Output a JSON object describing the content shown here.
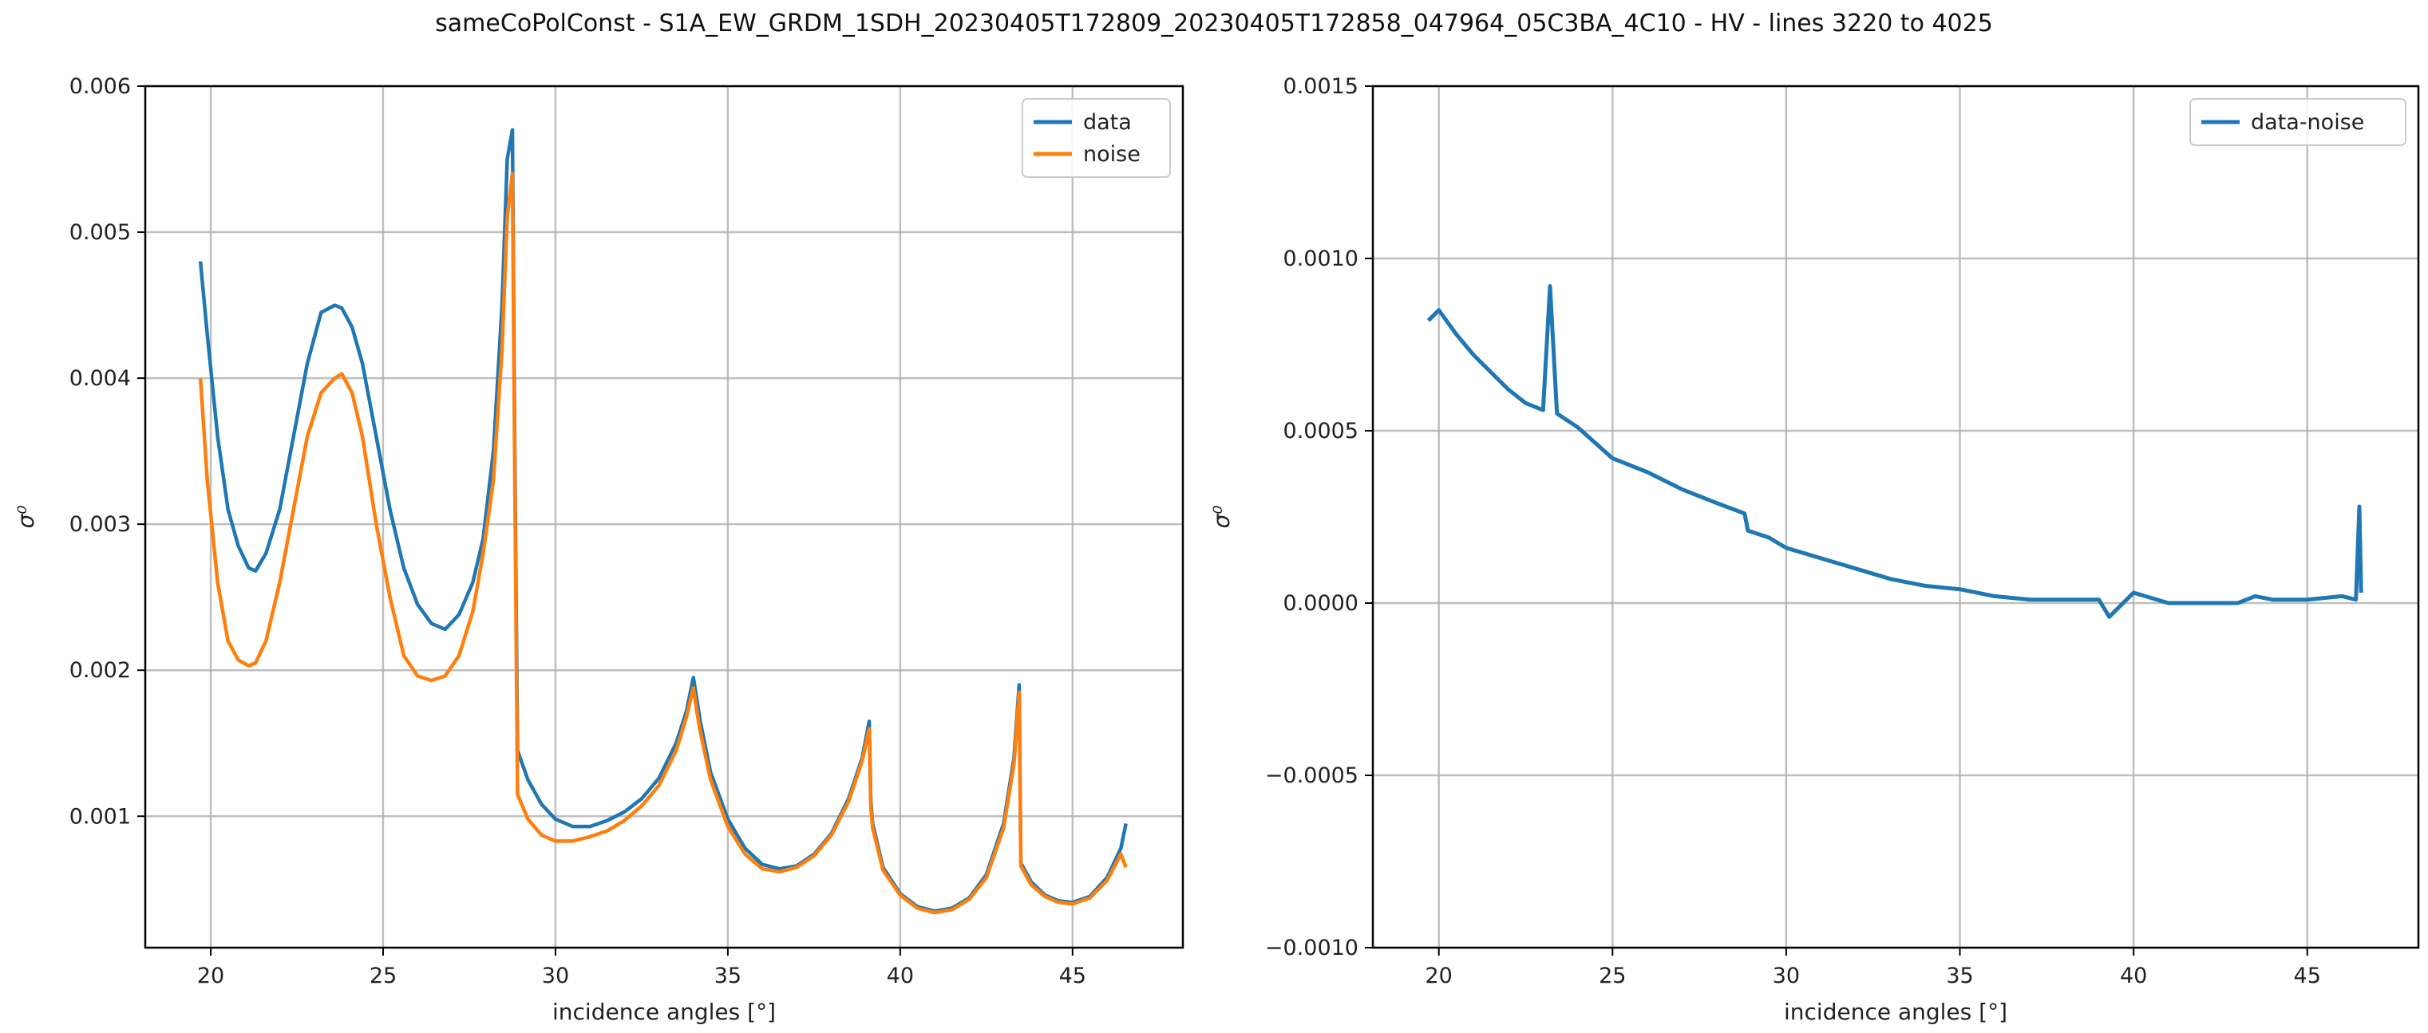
{
  "figure": {
    "suptitle": "sameCoPolConst - S1A_EW_GRDM_1SDH_20230405T172809_20230405T172858_047964_05C3BA_4C10 - HV - lines 3220 to 4025"
  },
  "colors": {
    "data": "#1f77b4",
    "noise": "#ff7f0e",
    "grid": "#b0b0b0",
    "axes": "#000000"
  },
  "chart_data": [
    {
      "type": "line",
      "title": "",
      "xlabel": "incidence angles [°]",
      "ylabel": "σ⁰",
      "xlim": [
        18.1,
        48.2
      ],
      "ylim": [
        0.0001,
        0.006
      ],
      "xticks": [
        20,
        25,
        30,
        35,
        40,
        45
      ],
      "xtick_labels": [
        "20",
        "25",
        "30",
        "35",
        "40",
        "45"
      ],
      "yticks": [
        0.001,
        0.002,
        0.003,
        0.004,
        0.005,
        0.006
      ],
      "ytick_labels": [
        "0.001",
        "0.002",
        "0.003",
        "0.004",
        "0.005",
        "0.006"
      ],
      "grid": true,
      "legend_position": "top-right",
      "series": [
        {
          "name": "data",
          "color": "#1f77b4",
          "x": [
            19.7,
            19.9,
            20.2,
            20.5,
            20.8,
            21.1,
            21.3,
            21.6,
            22.0,
            22.4,
            22.8,
            23.2,
            23.6,
            23.8,
            24.1,
            24.4,
            24.8,
            25.2,
            25.6,
            26.0,
            26.4,
            26.8,
            27.2,
            27.6,
            27.9,
            28.2,
            28.45,
            28.6,
            28.75,
            28.82,
            28.9,
            29.2,
            29.6,
            30.0,
            30.5,
            31.0,
            31.5,
            32.0,
            32.5,
            33.0,
            33.5,
            33.8,
            34.0,
            34.1,
            34.2,
            34.5,
            35.0,
            35.5,
            36.0,
            36.5,
            37.0,
            37.5,
            38.0,
            38.5,
            38.9,
            39.1,
            39.15,
            39.2,
            39.5,
            40.0,
            40.5,
            41.0,
            41.5,
            42.0,
            42.5,
            43.0,
            43.3,
            43.45,
            43.5,
            43.8,
            44.2,
            44.6,
            45.0,
            45.5,
            46.0,
            46.4,
            46.55
          ],
          "y": [
            0.0048,
            0.0043,
            0.0036,
            0.0031,
            0.00285,
            0.0027,
            0.00268,
            0.0028,
            0.0031,
            0.0036,
            0.0041,
            0.00445,
            0.0045,
            0.00448,
            0.00435,
            0.0041,
            0.0036,
            0.0031,
            0.0027,
            0.00245,
            0.00232,
            0.00228,
            0.00238,
            0.0026,
            0.0029,
            0.0035,
            0.0045,
            0.0055,
            0.0057,
            0.0035,
            0.00145,
            0.00125,
            0.00108,
            0.00098,
            0.00093,
            0.00093,
            0.00097,
            0.00103,
            0.00112,
            0.00126,
            0.0015,
            0.00172,
            0.00195,
            0.0018,
            0.00165,
            0.0013,
            0.00098,
            0.00078,
            0.00067,
            0.00064,
            0.00066,
            0.00074,
            0.00088,
            0.00112,
            0.0014,
            0.00165,
            0.0011,
            0.00095,
            0.00065,
            0.00047,
            0.00038,
            0.00035,
            0.00037,
            0.00044,
            0.0006,
            0.00095,
            0.0014,
            0.0019,
            0.00068,
            0.00055,
            0.00046,
            0.00042,
            0.00041,
            0.00045,
            0.00058,
            0.00078,
            0.00095
          ]
        },
        {
          "name": "noise",
          "color": "#ff7f0e",
          "x": [
            19.7,
            19.9,
            20.2,
            20.5,
            20.8,
            21.1,
            21.3,
            21.6,
            22.0,
            22.4,
            22.8,
            23.2,
            23.6,
            23.8,
            24.1,
            24.4,
            24.8,
            25.2,
            25.6,
            26.0,
            26.4,
            26.8,
            27.2,
            27.6,
            27.9,
            28.2,
            28.45,
            28.6,
            28.75,
            28.82,
            28.9,
            29.2,
            29.6,
            30.0,
            30.5,
            31.0,
            31.5,
            32.0,
            32.5,
            33.0,
            33.5,
            33.8,
            34.0,
            34.1,
            34.2,
            34.5,
            35.0,
            35.5,
            36.0,
            36.5,
            37.0,
            37.5,
            38.0,
            38.5,
            38.9,
            39.1,
            39.15,
            39.2,
            39.5,
            40.0,
            40.5,
            41.0,
            41.5,
            42.0,
            42.5,
            43.0,
            43.3,
            43.45,
            43.5,
            43.8,
            44.2,
            44.6,
            45.0,
            45.5,
            46.0,
            46.4,
            46.55
          ],
          "y": [
            0.004,
            0.0033,
            0.0026,
            0.0022,
            0.00207,
            0.00203,
            0.00205,
            0.0022,
            0.0026,
            0.0031,
            0.0036,
            0.0039,
            0.004,
            0.00403,
            0.0039,
            0.0036,
            0.003,
            0.0025,
            0.0021,
            0.00196,
            0.00193,
            0.00196,
            0.0021,
            0.0024,
            0.0028,
            0.0033,
            0.0042,
            0.0051,
            0.0054,
            0.0033,
            0.00115,
            0.00098,
            0.00087,
            0.00083,
            0.00083,
            0.00086,
            0.0009,
            0.00097,
            0.00107,
            0.00121,
            0.00145,
            0.00168,
            0.00188,
            0.00172,
            0.00158,
            0.00125,
            0.00093,
            0.00074,
            0.00064,
            0.00062,
            0.00065,
            0.00073,
            0.00087,
            0.0011,
            0.00138,
            0.0016,
            0.00106,
            0.00092,
            0.00063,
            0.00046,
            0.00037,
            0.00034,
            0.00036,
            0.00043,
            0.00058,
            0.00092,
            0.00136,
            0.00185,
            0.00066,
            0.00053,
            0.00045,
            0.00041,
            0.0004,
            0.00044,
            0.00056,
            0.00074,
            0.00065
          ]
        }
      ]
    },
    {
      "type": "line",
      "title": "",
      "xlabel": "incidence angles [°]",
      "ylabel": "σ⁰",
      "xlim": [
        18.1,
        48.2
      ],
      "ylim": [
        -0.001,
        0.0015
      ],
      "xticks": [
        20,
        25,
        30,
        35,
        40,
        45
      ],
      "xtick_labels": [
        "20",
        "25",
        "30",
        "35",
        "40",
        "45"
      ],
      "yticks": [
        -0.001,
        -0.0005,
        0.0,
        0.0005,
        0.001,
        0.0015
      ],
      "ytick_labels": [
        "−0.0010",
        "−0.0005",
        "0.0000",
        "0.0005",
        "0.0010",
        "0.0015"
      ],
      "grid": true,
      "legend_position": "top-right",
      "series": [
        {
          "name": "data-noise",
          "color": "#1f77b4",
          "x": [
            19.7,
            20.0,
            20.5,
            21.0,
            21.5,
            22.0,
            22.5,
            23.0,
            23.2,
            23.4,
            24.0,
            25.0,
            26.0,
            27.0,
            28.0,
            28.8,
            28.9,
            29.5,
            30.0,
            31.0,
            32.0,
            33.0,
            34.0,
            35.0,
            36.0,
            37.0,
            38.0,
            39.0,
            39.3,
            40.0,
            41.0,
            42.0,
            43.0,
            43.5,
            44.0,
            45.0,
            46.0,
            46.4,
            46.5,
            46.55
          ],
          "y": [
            0.00082,
            0.00085,
            0.00078,
            0.00072,
            0.00067,
            0.00062,
            0.00058,
            0.00056,
            0.00092,
            0.00055,
            0.00051,
            0.00042,
            0.00038,
            0.00033,
            0.00029,
            0.00026,
            0.00021,
            0.00019,
            0.00016,
            0.00013,
            0.0001,
            7e-05,
            5e-05,
            4e-05,
            2e-05,
            1e-05,
            1e-05,
            1e-05,
            -4e-05,
            3e-05,
            0.0,
            0.0,
            0.0,
            2e-05,
            1e-05,
            1e-05,
            2e-05,
            1e-05,
            0.00028,
            3e-05
          ]
        }
      ]
    }
  ]
}
